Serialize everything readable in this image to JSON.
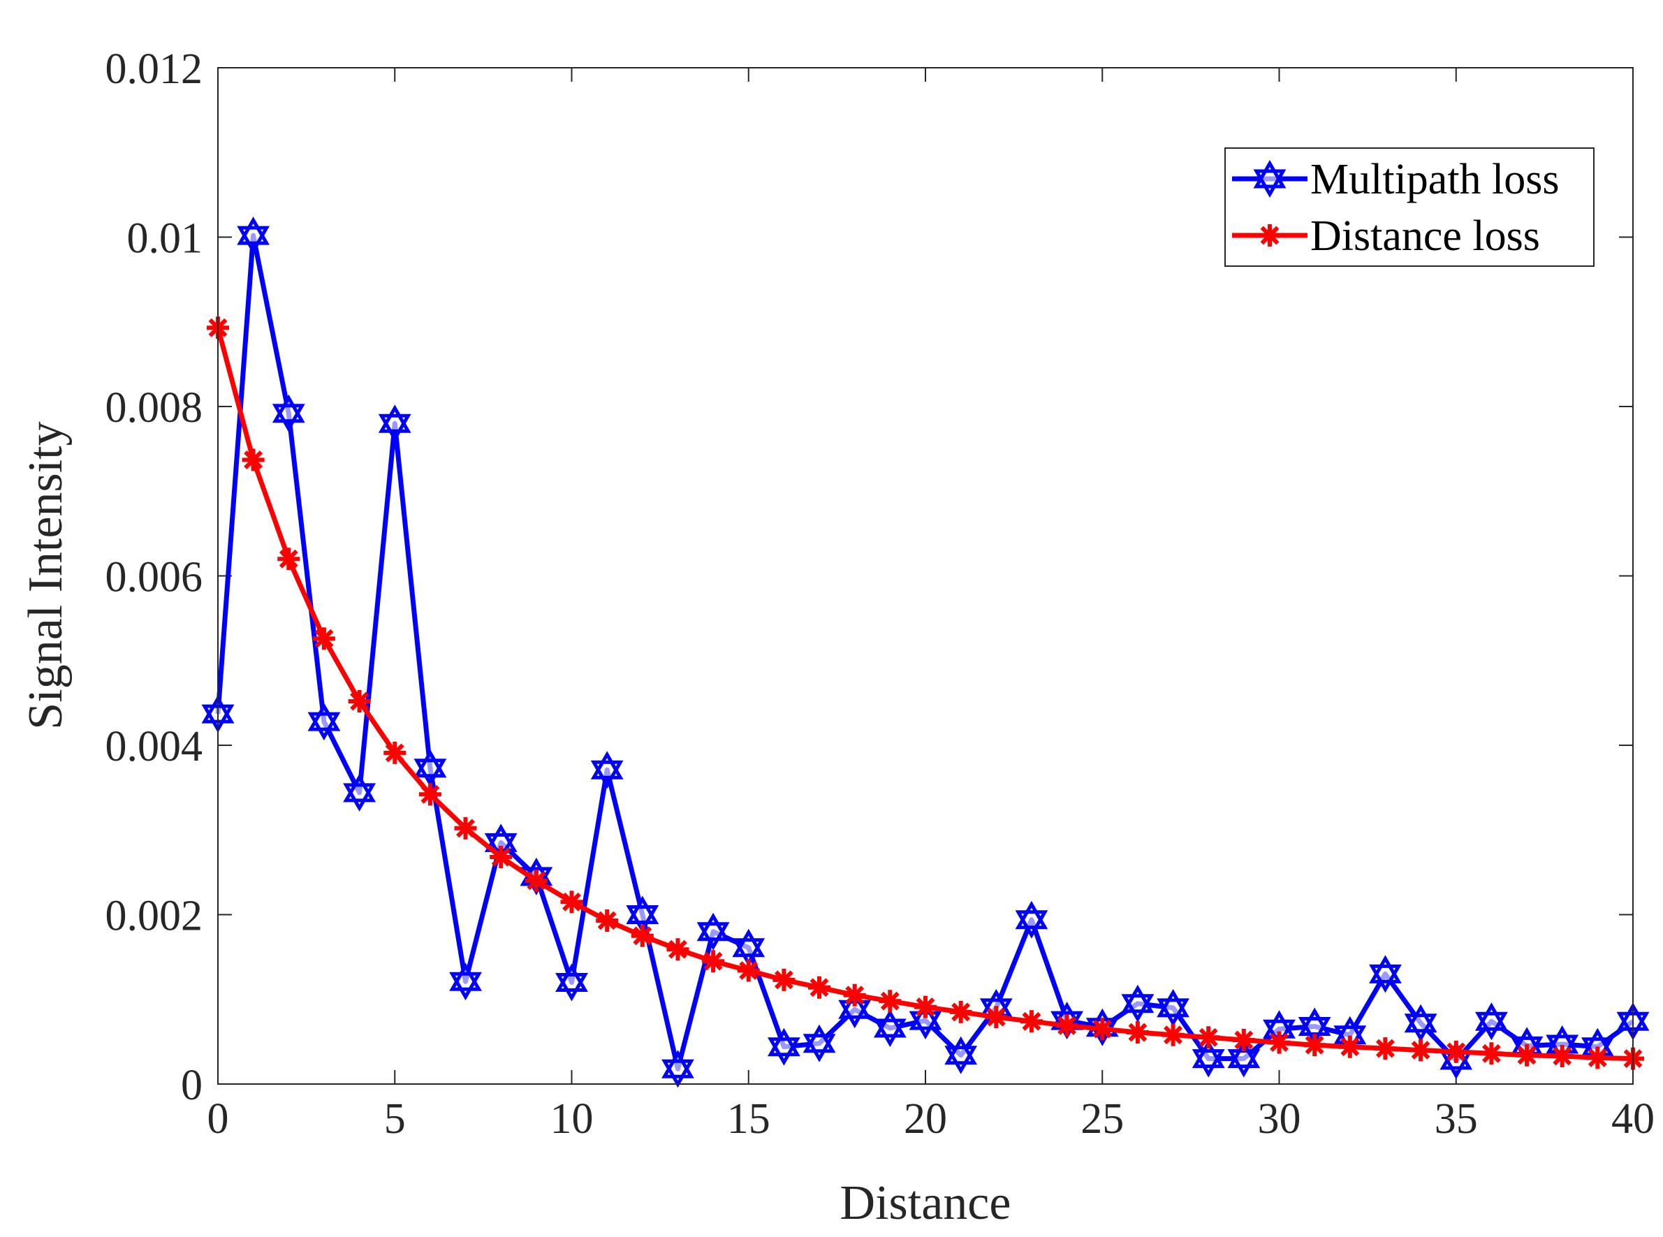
{
  "chart_data": {
    "type": "line",
    "title": "",
    "xlabel": "Distance",
    "ylabel": "Signal Intensity",
    "xlim": [
      0,
      40
    ],
    "ylim": [
      0,
      0.012
    ],
    "xticks": [
      0,
      5,
      10,
      15,
      20,
      25,
      30,
      35,
      40
    ],
    "xtick_labels": [
      "0",
      "5",
      "10",
      "15",
      "20",
      "25",
      "30",
      "35",
      "40"
    ],
    "yticks": [
      0,
      0.002,
      0.004,
      0.006,
      0.008,
      0.01,
      0.012
    ],
    "ytick_labels": [
      "0",
      "0.002",
      "0.004",
      "0.006",
      "0.008",
      "0.01",
      "0.012"
    ],
    "grid": false,
    "legend_position": "top-right",
    "x": [
      0,
      1,
      2,
      3,
      4,
      5,
      6,
      7,
      8,
      9,
      10,
      11,
      12,
      13,
      14,
      15,
      16,
      17,
      18,
      19,
      20,
      21,
      22,
      23,
      24,
      25,
      26,
      27,
      28,
      29,
      30,
      31,
      32,
      33,
      34,
      35,
      36,
      37,
      38,
      39,
      40
    ],
    "series": [
      {
        "name": "Multipath loss",
        "color": "#0000ff",
        "marker": "hexagram",
        "values": [
          0.00437,
          0.01002,
          0.00792,
          0.00428,
          0.00344,
          0.0078,
          0.00373,
          0.00121,
          0.00285,
          0.00245,
          0.0012,
          0.00371,
          0.002,
          0.00018,
          0.0018,
          0.00161,
          0.00044,
          0.00048,
          0.00088,
          0.00066,
          0.00075,
          0.00034,
          0.0009,
          0.00194,
          0.00075,
          0.00067,
          0.00095,
          0.0009,
          0.0003,
          0.0003,
          0.00065,
          0.00068,
          0.00058,
          0.0013,
          0.00072,
          0.00028,
          0.00074,
          0.00045,
          0.00047,
          0.00044,
          0.00074
        ]
      },
      {
        "name": "Distance loss",
        "color": "#ff0000",
        "marker": "asterisk",
        "values": [
          0.00893,
          0.00737,
          0.0062,
          0.00526,
          0.00452,
          0.00391,
          0.00342,
          0.00302,
          0.00268,
          0.0024,
          0.00215,
          0.00193,
          0.00175,
          0.00159,
          0.00145,
          0.00134,
          0.00123,
          0.00114,
          0.00105,
          0.00098,
          0.00091,
          0.00085,
          0.00079,
          0.00074,
          0.00069,
          0.00065,
          0.00061,
          0.00058,
          0.00055,
          0.00052,
          0.00049,
          0.00046,
          0.00044,
          0.00042,
          0.0004,
          0.00038,
          0.00036,
          0.00034,
          0.00033,
          0.00031,
          0.0003
        ]
      }
    ]
  }
}
